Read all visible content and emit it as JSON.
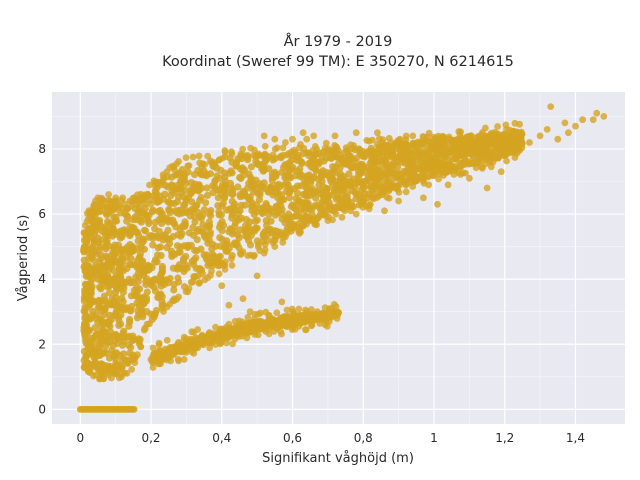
{
  "chart_data": {
    "type": "scatter",
    "title_line1": "År 1979 - 2019",
    "title_line2": "Koordinat (Sweref 99 TM): E 350270, N 6214615",
    "xlabel": "Signifikant våghöjd (m)",
    "ylabel": "Vågperiod (s)",
    "xlim": [
      -0.08,
      1.54
    ],
    "ylim": [
      -0.45,
      9.75
    ],
    "xticks": [
      0,
      0.2,
      0.4,
      0.6,
      0.8,
      1,
      1.2,
      1.4
    ],
    "xtick_labels": [
      "0",
      "0,2",
      "0,4",
      "0,6",
      "0,8",
      "1",
      "1,2",
      "1,4"
    ],
    "yticks": [
      0,
      2,
      4,
      6,
      8
    ],
    "ytick_labels": [
      "0",
      "2",
      "4",
      "6",
      "8"
    ],
    "grid": true,
    "colors": {
      "marker": "#d4a421",
      "plot_bg": "#e9e9f2",
      "grid": "#ffffff"
    },
    "upper_band": [
      [
        0.01,
        1.5,
        5.2
      ],
      [
        0.02,
        1.4,
        5.8
      ],
      [
        0.04,
        1.2,
        6.2
      ],
      [
        0.06,
        1.1,
        6.3
      ],
      [
        0.08,
        1.1,
        6.3
      ],
      [
        0.1,
        1.2,
        6.2
      ],
      [
        0.12,
        1.2,
        6.2
      ],
      [
        0.15,
        1.5,
        6.3
      ],
      [
        0.18,
        2.4,
        6.6
      ],
      [
        0.22,
        3.0,
        7.0
      ],
      [
        0.26,
        3.5,
        7.3
      ],
      [
        0.3,
        3.8,
        7.5
      ],
      [
        0.35,
        4.1,
        7.6
      ],
      [
        0.4,
        4.4,
        7.7
      ],
      [
        0.45,
        4.7,
        7.8
      ],
      [
        0.5,
        5.0,
        7.8
      ],
      [
        0.55,
        5.2,
        7.9
      ],
      [
        0.6,
        5.5,
        7.9
      ],
      [
        0.65,
        5.7,
        7.9
      ],
      [
        0.7,
        6.0,
        8.0
      ],
      [
        0.75,
        6.2,
        8.0
      ],
      [
        0.8,
        6.3,
        8.0
      ],
      [
        0.85,
        6.6,
        8.1
      ],
      [
        0.9,
        6.8,
        8.2
      ],
      [
        0.95,
        7.0,
        8.2
      ],
      [
        1.0,
        7.2,
        8.3
      ],
      [
        1.05,
        7.3,
        8.3
      ],
      [
        1.1,
        7.5,
        8.4
      ],
      [
        1.15,
        7.6,
        8.4
      ],
      [
        1.2,
        7.8,
        8.5
      ],
      [
        1.25,
        8.0,
        8.6
      ]
    ],
    "lower_band": [
      [
        0.2,
        1.4,
        1.7
      ],
      [
        0.25,
        1.6,
        1.9
      ],
      [
        0.3,
        1.8,
        2.1
      ],
      [
        0.35,
        2.0,
        2.3
      ],
      [
        0.4,
        2.1,
        2.4
      ],
      [
        0.45,
        2.3,
        2.6
      ],
      [
        0.5,
        2.4,
        2.7
      ],
      [
        0.55,
        2.5,
        2.8
      ],
      [
        0.6,
        2.6,
        2.9
      ],
      [
        0.65,
        2.7,
        2.9
      ],
      [
        0.7,
        2.8,
        3.0
      ],
      [
        0.73,
        2.9,
        3.0
      ]
    ],
    "zero_band": {
      "x_min": 0.0,
      "x_max": 0.155,
      "y": 0
    },
    "outliers": [
      [
        1.33,
        9.3
      ],
      [
        1.46,
        9.1
      ],
      [
        1.48,
        9.0
      ],
      [
        1.42,
        8.9
      ],
      [
        1.4,
        8.7
      ],
      [
        1.38,
        8.5
      ],
      [
        1.35,
        8.3
      ],
      [
        1.32,
        8.6
      ],
      [
        1.3,
        8.4
      ],
      [
        1.27,
        8.2
      ],
      [
        1.45,
        8.9
      ],
      [
        1.37,
        8.8
      ],
      [
        0.88,
        8.2
      ],
      [
        0.94,
        8.4
      ],
      [
        0.84,
        8.5
      ],
      [
        0.78,
        8.5
      ],
      [
        0.72,
        8.4
      ],
      [
        0.63,
        8.5
      ],
      [
        0.64,
        8.3
      ],
      [
        0.66,
        8.4
      ],
      [
        0.6,
        8.3
      ],
      [
        0.58,
        8.2
      ],
      [
        0.55,
        8.3
      ],
      [
        0.52,
        8.4
      ],
      [
        0.2,
        6.3
      ],
      [
        0.18,
        6.5
      ],
      [
        0.16,
        6.3
      ],
      [
        0.14,
        6.4
      ],
      [
        0.12,
        6.5
      ],
      [
        0.1,
        6.5
      ],
      [
        0.08,
        6.6
      ],
      [
        0.05,
        6.5
      ],
      [
        0.04,
        6.3
      ],
      [
        0.67,
        3.0
      ],
      [
        0.71,
        3.1
      ],
      [
        0.64,
        3.0
      ],
      [
        0.59,
        2.8
      ],
      [
        0.57,
        3.3
      ],
      [
        0.48,
        3.0
      ],
      [
        0.42,
        3.2
      ],
      [
        0.4,
        3.8
      ],
      [
        0.46,
        3.4
      ],
      [
        0.5,
        4.1
      ],
      [
        0.97,
        6.5
      ],
      [
        1.01,
        6.3
      ],
      [
        1.04,
        6.9
      ],
      [
        1.1,
        7.1
      ],
      [
        1.15,
        6.8
      ],
      [
        1.19,
        7.3
      ],
      [
        0.86,
        6.1
      ],
      [
        0.82,
        6.3
      ],
      [
        0.9,
        6.4
      ],
      [
        0.78,
        6.0
      ],
      [
        0.74,
        5.9
      ],
      [
        0.7,
        5.8
      ],
      [
        0.62,
        5.5
      ],
      [
        0.58,
        5.3
      ],
      [
        0.55,
        5.0
      ],
      [
        0.52,
        4.8
      ]
    ]
  }
}
